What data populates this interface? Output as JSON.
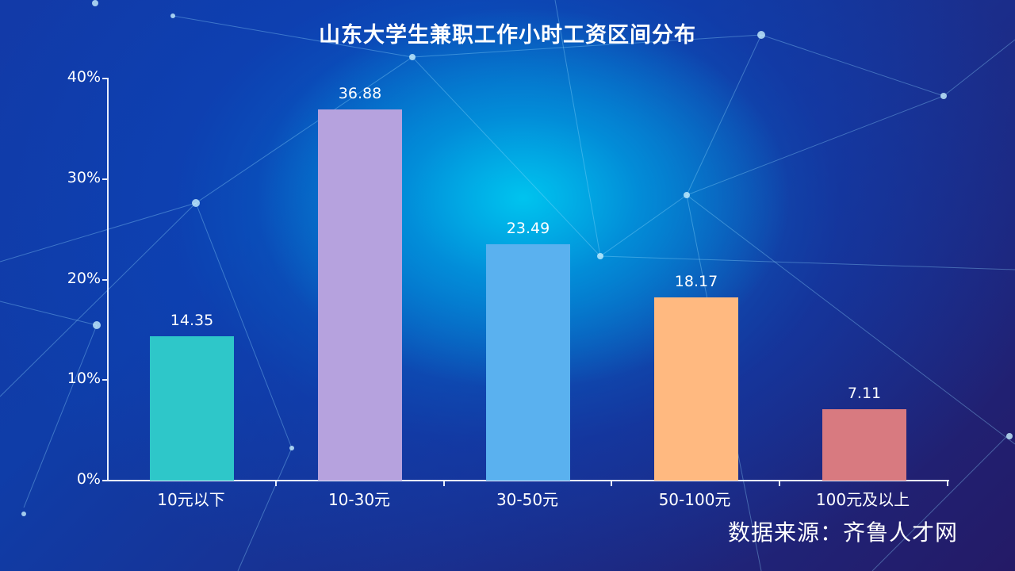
{
  "chart_data": {
    "type": "bar",
    "title": "山东大学生兼职工作小时工资区间分布",
    "xlabel": "",
    "ylabel": "",
    "categories": [
      "10元以下",
      "10-30元",
      "30-50元",
      "50-100元",
      "100元及以上"
    ],
    "values": [
      14.35,
      36.88,
      23.49,
      18.17,
      7.11
    ],
    "value_labels": [
      "14.35",
      "36.88",
      "23.49",
      "18.17",
      "7.11"
    ],
    "colors": [
      "#2ec7c9",
      "#b6a2de",
      "#5ab1ef",
      "#ffb980",
      "#d87a80"
    ],
    "ylim": [
      0,
      40
    ],
    "yticks": [
      "0%",
      "10%",
      "20%",
      "30%",
      "40%"
    ],
    "grid": false,
    "legend": null,
    "source": "数据来源：齐鲁人才网"
  },
  "title": "山东大学生兼职工作小时工资区间分布",
  "source": "数据来源：齐鲁人才网"
}
